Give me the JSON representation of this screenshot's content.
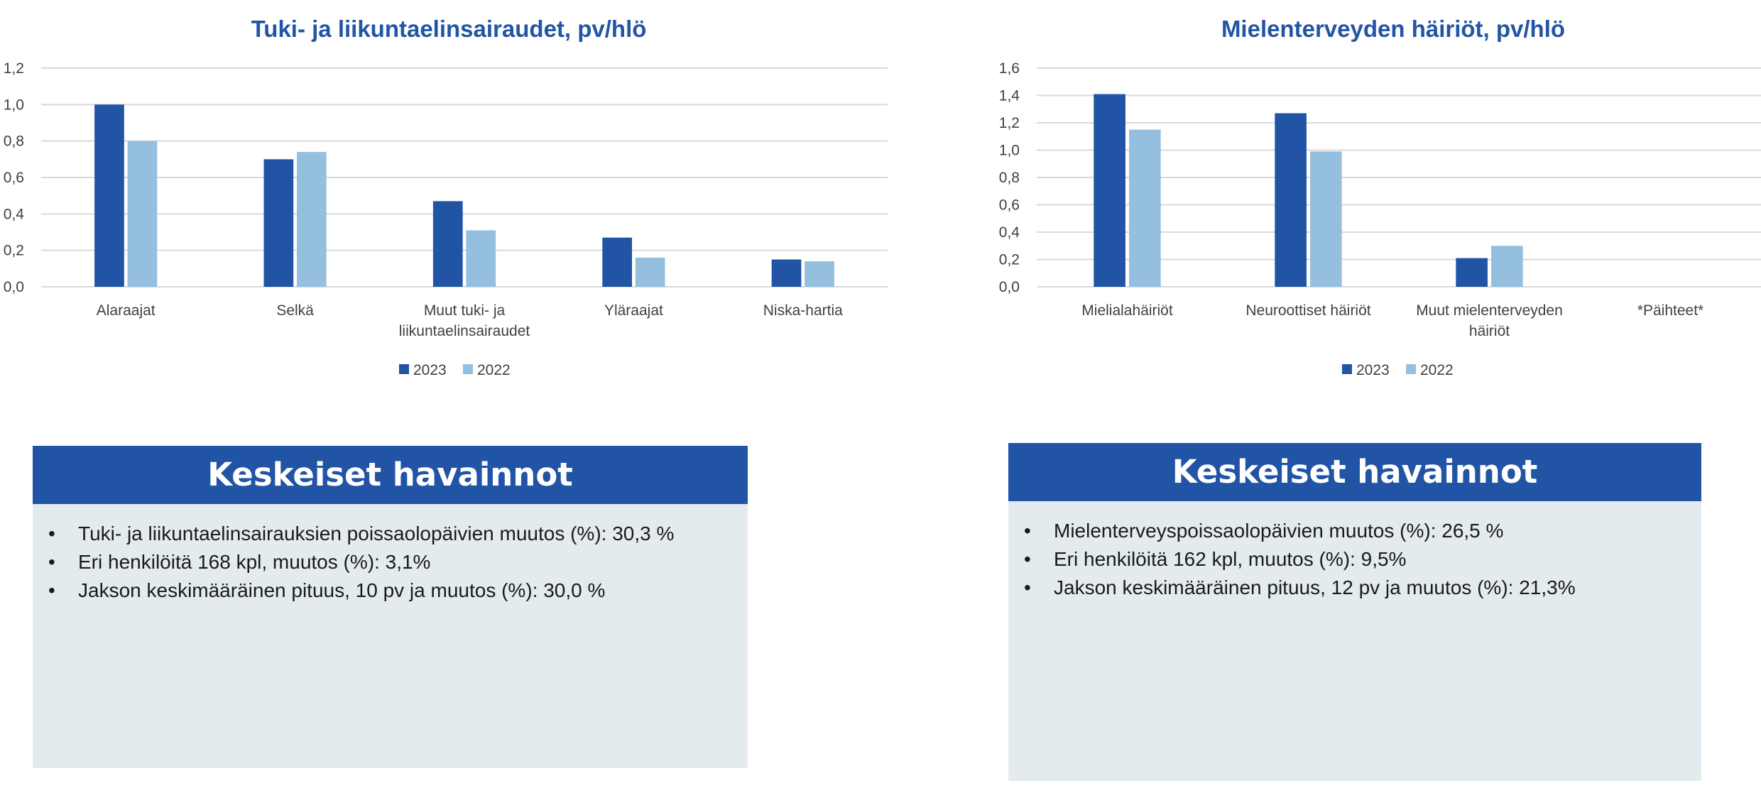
{
  "colors": {
    "series_2023": "#2254a6",
    "series_2022": "#95bfdf",
    "title": "#2255a4",
    "panel_header": "#2254a6",
    "panel_body": "#e4ebee"
  },
  "chart_data": [
    {
      "type": "bar",
      "title": "Tuki- ja liikuntaelinsairaudet, pv/hlö",
      "categories": [
        [
          "Alaraajat"
        ],
        [
          "Selkä"
        ],
        [
          "Muut tuki- ja",
          "liikuntaelinsairaudet"
        ],
        [
          "Yläraajat"
        ],
        [
          "Niska-hartia"
        ]
      ],
      "series": [
        {
          "name": "2023",
          "values": [
            1.0,
            0.7,
            0.47,
            0.27,
            0.15
          ]
        },
        {
          "name": "2022",
          "values": [
            0.8,
            0.74,
            0.31,
            0.16,
            0.14
          ]
        }
      ],
      "ylim": [
        0,
        1.2
      ],
      "yticks": [
        "0,0",
        "0,2",
        "0,4",
        "0,6",
        "0,8",
        "1,0",
        "1,2"
      ],
      "grid": true,
      "legend": "bottom"
    },
    {
      "type": "bar",
      "title": "Mielenterveyden häiriöt, pv/hlö",
      "categories": [
        [
          "Mielialahäiriöt"
        ],
        [
          "Neuroottiset häiriöt"
        ],
        [
          "Muut mielenterveyden",
          "häiriöt"
        ],
        [
          "*Päihteet*"
        ]
      ],
      "series": [
        {
          "name": "2023",
          "values": [
            1.41,
            1.27,
            0.21,
            0
          ]
        },
        {
          "name": "2022",
          "values": [
            1.15,
            0.99,
            0.3,
            0
          ]
        }
      ],
      "ylim": [
        0,
        1.6
      ],
      "yticks": [
        "0,0",
        "0,2",
        "0,4",
        "0,6",
        "0,8",
        "1,0",
        "1,2",
        "1,4",
        "1,6"
      ],
      "grid": true,
      "legend": "bottom"
    }
  ],
  "panels": [
    {
      "header": "Keskeiset havainnot",
      "bullet": "•",
      "items": [
        "Tuki- ja liikuntaelinsairauksien poissaolopäivien muutos (%): 30,3 %",
        "Eri henkilöitä 168 kpl, muutos (%): 3,1%",
        "Jakson keskimääräinen pituus, 10 pv ja muutos (%): 30,0 %"
      ]
    },
    {
      "header": "Keskeiset havainnot",
      "bullet": "•",
      "items": [
        "Mielenterveyspoissaolopäivien muutos (%): 26,5 %",
        "Eri henkilöitä 162 kpl, muutos (%): 9,5%",
        "Jakson keskimääräinen pituus, 12 pv ja muutos (%): 21,3%"
      ]
    }
  ]
}
